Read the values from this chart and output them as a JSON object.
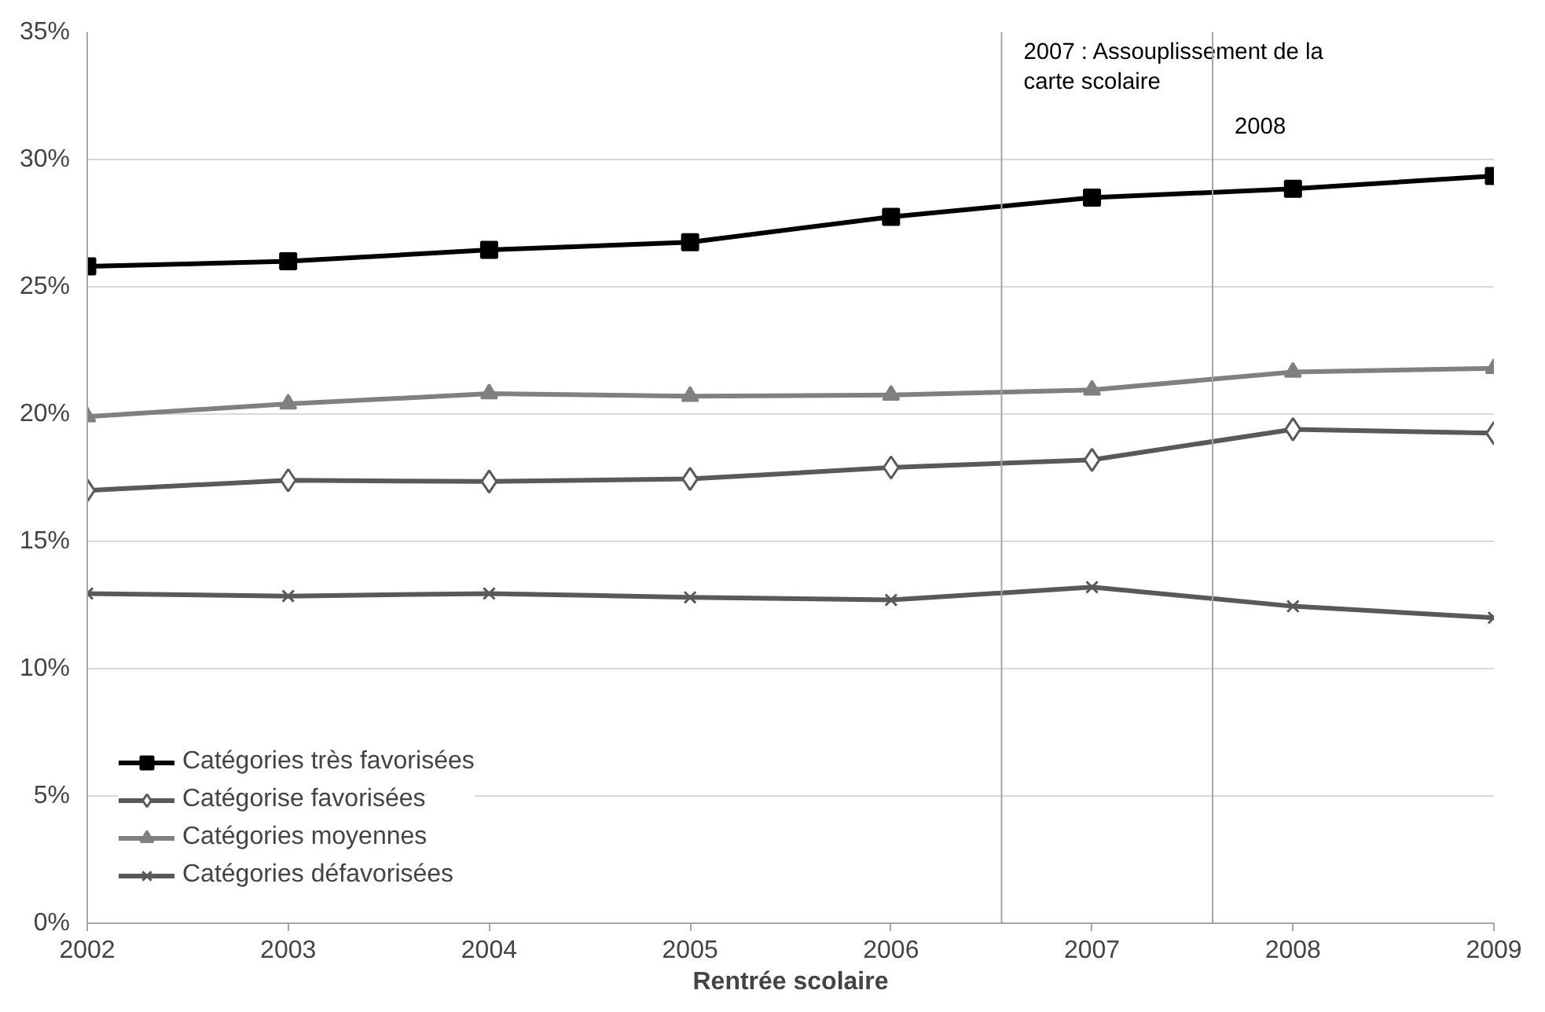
{
  "chart_data": {
    "type": "line",
    "xlabel": "Rentrée scolaire",
    "x": [
      2002,
      2003,
      2004,
      2005,
      2006,
      2007,
      2008,
      2009
    ],
    "xlim": [
      2002,
      2009
    ],
    "xticks": [
      2002,
      2003,
      2004,
      2005,
      2006,
      2007,
      2008,
      2009
    ],
    "ylim": [
      0,
      35
    ],
    "yticks": [
      {
        "value": 0,
        "label": "0%"
      },
      {
        "value": 5,
        "label": "5%"
      },
      {
        "value": 10,
        "label": "10%"
      },
      {
        "value": 15,
        "label": "15%"
      },
      {
        "value": 20,
        "label": "20%"
      },
      {
        "value": 25,
        "label": "25%"
      },
      {
        "value": 30,
        "label": "30%"
      },
      {
        "value": 35,
        "label": "35%"
      }
    ],
    "grid": "y",
    "legend": "bottom left",
    "line_style": "solid",
    "series": [
      {
        "name": "Catégories très favorisées",
        "color": "#000000",
        "marker": "square",
        "values": [
          25.8,
          26.0,
          26.45,
          26.75,
          27.75,
          28.5,
          28.85,
          29.35
        ]
      },
      {
        "name": "Catégorise favorisées",
        "color": "#595959",
        "marker": "diamond",
        "values": [
          17.0,
          17.4,
          17.35,
          17.45,
          17.9,
          18.2,
          19.4,
          19.25
        ]
      },
      {
        "name": "Catégories moyennes",
        "color": "#808080",
        "marker": "triangle",
        "values": [
          19.9,
          20.4,
          20.8,
          20.7,
          20.75,
          20.95,
          21.65,
          21.8
        ]
      },
      {
        "name": "Catégories défavorisées",
        "color": "#595959",
        "marker": "cross",
        "values": [
          12.95,
          12.85,
          12.95,
          12.8,
          12.7,
          13.2,
          12.45,
          12.0
        ]
      }
    ],
    "ref_lines": [
      {
        "axis": "x",
        "value": 2006.55,
        "label": "2007 : Assouplissement de la carte scolaire",
        "color": "#a6a6a6"
      },
      {
        "axis": "x",
        "value": 2007.6,
        "label": "2008",
        "color": "#a6a6a6"
      }
    ]
  }
}
